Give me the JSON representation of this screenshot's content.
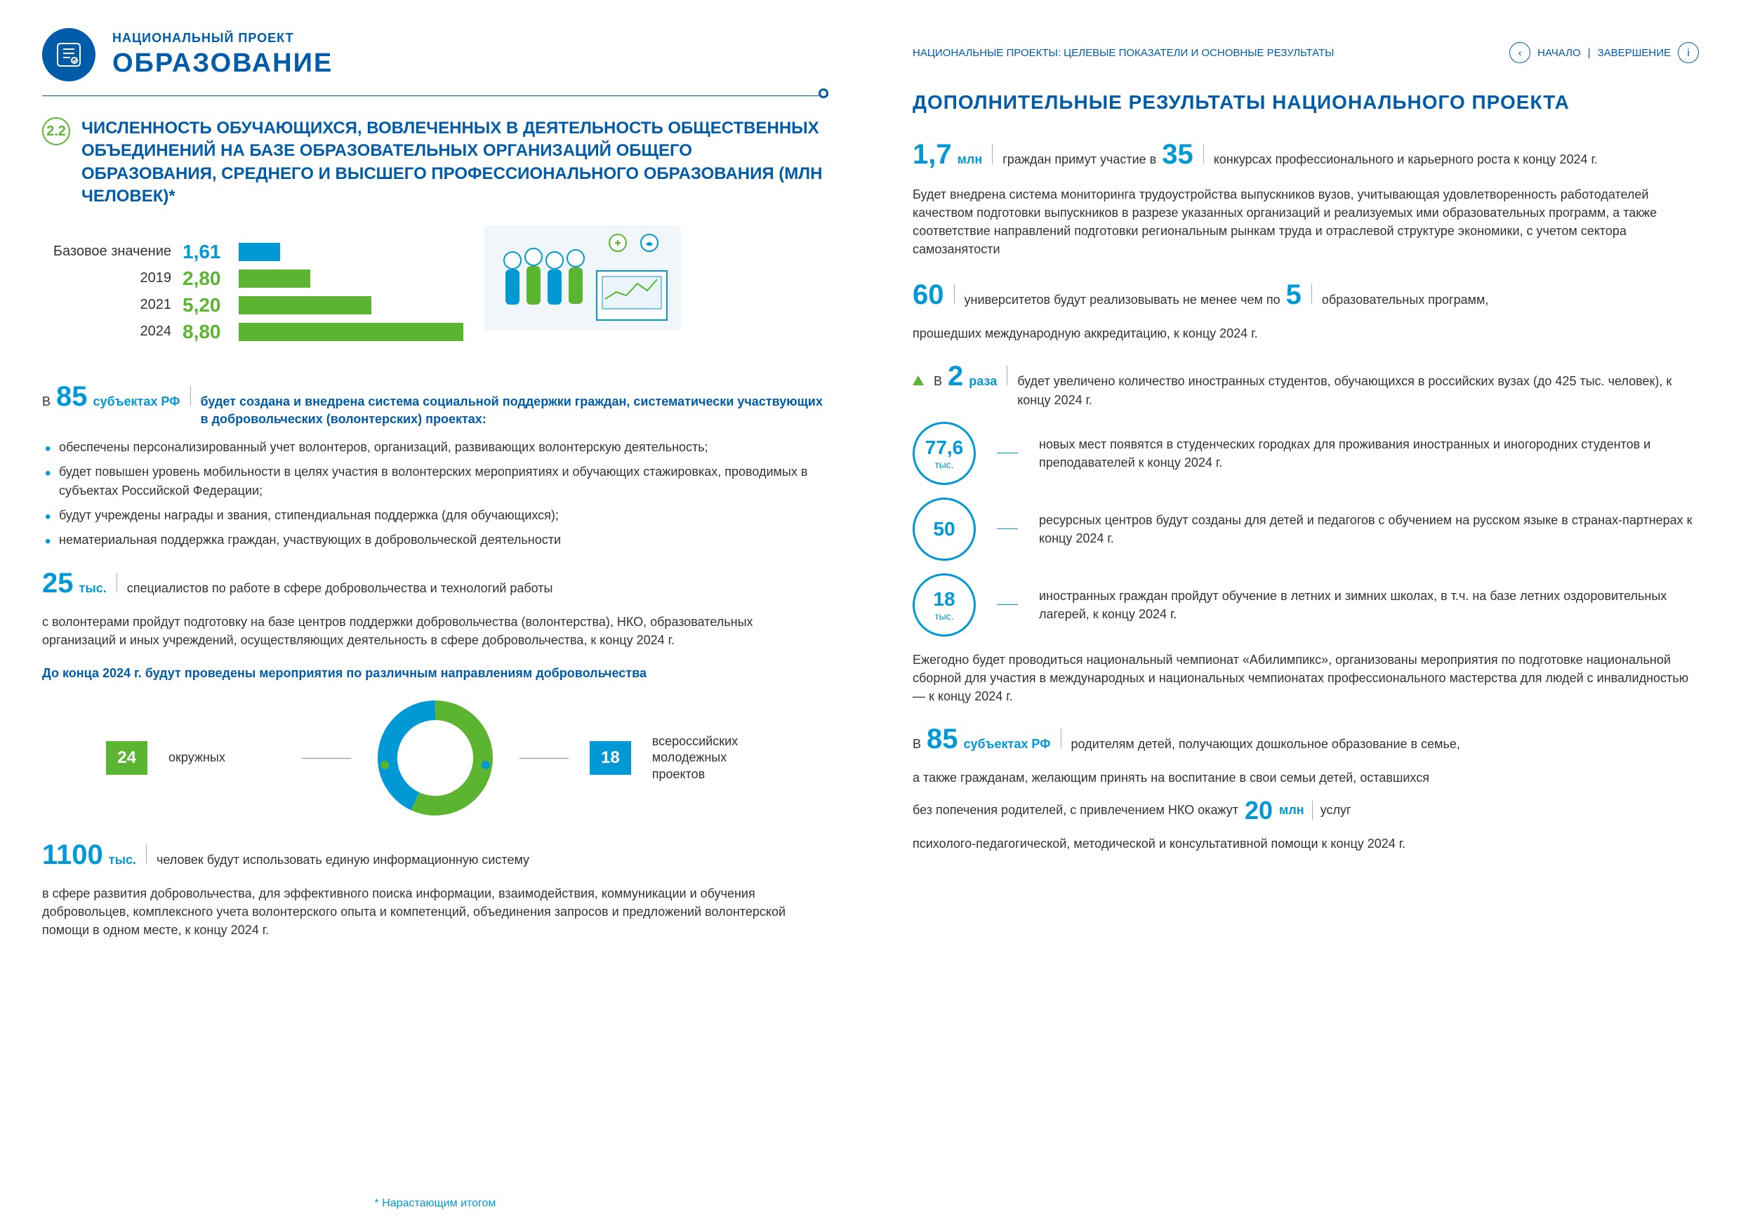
{
  "colors": {
    "primary": "#005ca9",
    "accent": "#0099d6",
    "green": "#5cb531",
    "text": "#333333",
    "bg": "#ffffff"
  },
  "header": {
    "proj_label": "НАЦИОНАЛЬНЫЙ ПРОЕКТ",
    "proj_title": "ОБРАЗОВАНИЕ"
  },
  "right_header": {
    "breadcrumb": "НАЦИОНАЛЬНЫЕ ПРОЕКТЫ: ЦЕЛЕВЫЕ ПОКАЗАТЕЛИ И ОСНОВНЫЕ РЕЗУЛЬТАТЫ",
    "nav_start": "НАЧАЛО",
    "nav_end": "ЗАВЕРШЕНИЕ"
  },
  "section": {
    "num": "2.2",
    "title": "ЧИСЛЕННОСТЬ ОБУЧАЮЩИХСЯ, ВОВЛЕЧЕННЫХ В ДЕЯТЕЛЬНОСТЬ ОБЩЕСТВЕННЫХ ОБЪЕДИНЕНИЙ НА БАЗЕ ОБРАЗОВАТЕЛЬНЫХ ОРГАНИЗАЦИЙ ОБЩЕГО ОБРАЗОВАНИЯ, СРЕДНЕГО И ВЫСШЕГО ПРОФЕССИОНАЛЬНОГО ОБРАЗОВАНИЯ (МЛН ЧЕЛОВЕК)*"
  },
  "chart": {
    "type": "bar",
    "max": 8.8,
    "rows": [
      {
        "label": "Базовое значение",
        "value": "1,61",
        "num": 1.61,
        "color": "blue"
      },
      {
        "label": "2019",
        "value": "2,80",
        "num": 2.8,
        "color": "green"
      },
      {
        "label": "2021",
        "value": "5,20",
        "num": 5.2,
        "color": "green"
      },
      {
        "label": "2024",
        "value": "8,80",
        "num": 8.8,
        "color": "green"
      }
    ]
  },
  "left": {
    "s85_prefix": "В",
    "s85_num": "85",
    "s85_unit": "субъектах РФ",
    "s85_text": "будет создана и внедрена система социальной поддержки граждан, систематически участвующих в добровольческих (волонтерских) проектах:",
    "bullets": [
      "обеспечены персонализированный учет волонтеров, организаций, развивающих волонтерскую деятельность;",
      "будет повышен уровень мобильности в целях участия в волонтерских мероприятиях и обучающих стажировках, проводимых в субъектах Российской Федерации;",
      "будут учреждены награды и звания, стипендиальная поддержка (для обучающихся);",
      "нематериальная поддержка граждан, участвующих в добровольческой деятельности"
    ],
    "s25_num": "25",
    "s25_unit": "тыс.",
    "s25_text1": "специалистов по работе в сфере добровольчества и технологий работы",
    "s25_text2": "с волонтерами пройдут подготовку на базе центров поддержки добровольчества (волонтерства), НКО, образовательных организаций и иных учреждений, осуществляющих деятельность в сфере добровольчества, к концу 2024 г.",
    "donut_title": "До конца 2024 г. будут проведены мероприятия по различным направлениям добровольчества",
    "donut": {
      "left_num": "24",
      "left_label": "окружных",
      "right_num": "18",
      "right_label": "всероссийских молодежных проектов",
      "green_pct": 57,
      "blue_pct": 43
    },
    "s1100_num": "1100",
    "s1100_unit": "тыс.",
    "s1100_text1": "человек будут использовать единую информационную систему",
    "s1100_text2": "в сфере развития добровольчества, для эффективного поиска информации, взаимодействия, коммуникации и обучения добровольцев, комплексного учета волонтерского опыта и компетенций, объединения запросов и предложений волонтерской помощи в одном месте, к концу 2024 г."
  },
  "footnote": "* Нарастающим итогом",
  "right": {
    "title": "ДОПОЛНИТЕЛЬНЫЕ РЕЗУЛЬТАТЫ НАЦИОНАЛЬНОГО ПРОЕКТА",
    "r1_num": "1,7",
    "r1_unit": "млн",
    "r1_text1": "граждан примут участие в",
    "r1_num2": "35",
    "r1_text2": "конкурсах профессионального и карьерного роста к концу 2024 г.",
    "para1": "Будет внедрена система мониторинга трудоустройства выпускников вузов, учитывающая удовлетворенность работодателей качеством подготовки выпускников в разрезе указанных организаций и реализуемых ими образовательных программ, а также соответствие направлений подготовки региональным рынкам труда и отраслевой структуре экономики, с учетом сектора самозанятости",
    "r60_num": "60",
    "r60_text1": "университетов будут реализовывать не менее чем по",
    "r60_num2": "5",
    "r60_text2": "образовательных программ,",
    "r60_text3": "прошедших международную аккредитацию, к концу 2024 г.",
    "r2x_prefix": "В",
    "r2x_num": "2",
    "r2x_unit": "раза",
    "r2x_text": "будет увеличено количество иностранных студентов, обучающихся в российских вузах (до 425 тыс. человек), к концу 2024 г.",
    "circles": [
      {
        "n": "77,6",
        "u": "тыс.",
        "text": "новых мест появятся в студенческих городках для проживания иностранных и иногородних студентов и преподавателей к концу 2024 г."
      },
      {
        "n": "50",
        "u": "",
        "text": "ресурсных центров будут созданы для детей и педагогов с обучением на русском языке в странах-партнерах к концу 2024 г."
      },
      {
        "n": "18",
        "u": "тыс.",
        "text": "иностранных граждан пройдут обучение в летних и зимних школах, в т.ч. на базе летних оздоровительных лагерей, к концу 2024 г."
      }
    ],
    "para2": "Ежегодно будет проводиться национальный чемпионат «Абилимпикс», организованы мероприятия по подготовке национальной сборной для участия в международных и национальных чемпионатах профессионального мастерства для людей с инвалидностью — к концу 2024 г.",
    "r85_prefix": "В",
    "r85_num": "85",
    "r85_unit": "субъектах РФ",
    "r85_text1": "родителям детей, получающих дошкольное образование в семье,",
    "r85_text2": "а также гражданам, желающим принять на воспитание в свои семьи детей, оставшихся",
    "r85_text3a": "без попечения родителей, с привлечением НКО окажут",
    "r85_num2": "20",
    "r85_unit2": "млн",
    "r85_text3b": "услуг",
    "r85_text4": "психолого-педагогической, методической и консультативной помощи к концу 2024 г."
  }
}
